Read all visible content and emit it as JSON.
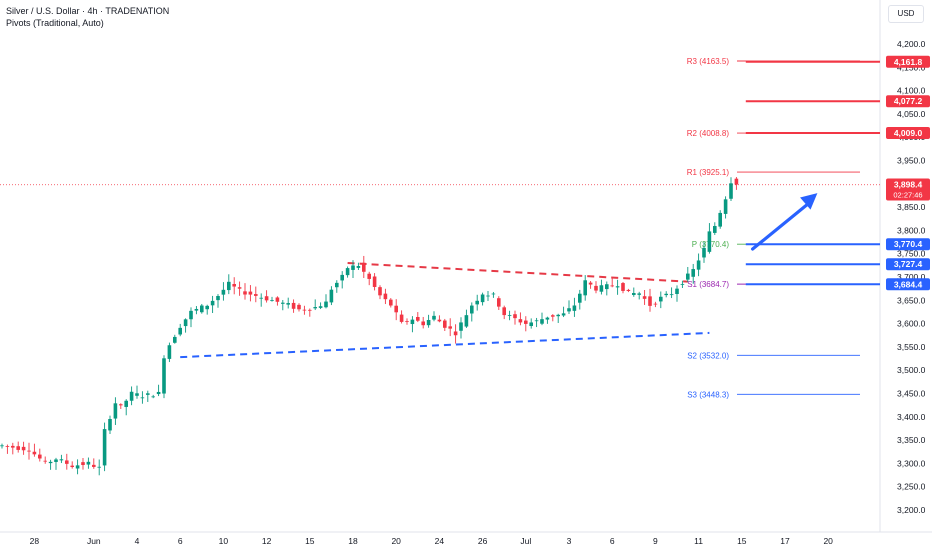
{
  "header": {
    "title": "Silver / U.S. Dollar · 4h · TRADENATION",
    "indicator": "Pivots (Traditional, Auto)"
  },
  "currency_button": "USD",
  "colors": {
    "up": "#089981",
    "down": "#f23645",
    "blue": "#2962ff",
    "red_line": "#e63946",
    "pivot_green": "#4caf50",
    "axis_text": "#131722"
  },
  "icons": {
    "arrow": "arrow-up-right-icon"
  },
  "chart_data": {
    "type": "candlestick",
    "title": "Silver / U.S. Dollar · 4h · TRADENATION",
    "y_axis": {
      "ticks": [
        "4,200.0",
        "4,150.0",
        "4,100.0",
        "4,050.0",
        "4,000.0",
        "3,950.0",
        "3,900.0",
        "3,850.0",
        "3,800.0",
        "3,750.0",
        "3,700.0",
        "3,650.0",
        "3,600.0",
        "3,550.0",
        "3,500.0",
        "3,450.0",
        "3,400.0",
        "3,350.0",
        "3,300.0",
        "3,250.0",
        "3,200.0"
      ],
      "tick_values": [
        4200,
        4150,
        4100,
        4050,
        4000,
        3950,
        3900,
        3850,
        3800,
        3750,
        3700,
        3650,
        3600,
        3550,
        3500,
        3450,
        3400,
        3350,
        3300,
        3250,
        3200
      ],
      "ylim": [
        3180,
        4240
      ]
    },
    "x_axis": {
      "labels": [
        "28",
        "Jun",
        "4",
        "6",
        "10",
        "12",
        "15",
        "18",
        "20",
        "24",
        "26",
        "Jul",
        "3",
        "6",
        "9",
        "11",
        "15",
        "17",
        "20"
      ],
      "label_bars": [
        6,
        17,
        25,
        33,
        41,
        49,
        57,
        65,
        73,
        81,
        89,
        97,
        105,
        113,
        121,
        129,
        137,
        145,
        153
      ]
    },
    "bar_count": 160,
    "last_price_bar": 136,
    "price_path": [
      [
        0,
        3338
      ],
      [
        5,
        3330
      ],
      [
        8,
        3300
      ],
      [
        10,
        3310
      ],
      [
        13,
        3295
      ],
      [
        16,
        3300
      ],
      [
        18,
        3290
      ],
      [
        19,
        3370
      ],
      [
        21,
        3430
      ],
      [
        22,
        3420
      ],
      [
        24,
        3450
      ],
      [
        26,
        3445
      ],
      [
        29,
        3450
      ],
      [
        30,
        3530
      ],
      [
        31,
        3555
      ],
      [
        33,
        3595
      ],
      [
        35,
        3625
      ],
      [
        38,
        3640
      ],
      [
        40,
        3660
      ],
      [
        42,
        3685
      ],
      [
        44,
        3670
      ],
      [
        47,
        3660
      ],
      [
        50,
        3650
      ],
      [
        53,
        3640
      ],
      [
        55,
        3630
      ],
      [
        58,
        3635
      ],
      [
        60,
        3645
      ],
      [
        61,
        3675
      ],
      [
        63,
        3700
      ],
      [
        64,
        3720
      ],
      [
        66,
        3725
      ],
      [
        68,
        3695
      ],
      [
        70,
        3660
      ],
      [
        72,
        3640
      ],
      [
        74,
        3600
      ],
      [
        76,
        3610
      ],
      [
        78,
        3600
      ],
      [
        80,
        3615
      ],
      [
        82,
        3595
      ],
      [
        84,
        3580
      ],
      [
        85,
        3600
      ],
      [
        87,
        3640
      ],
      [
        89,
        3665
      ],
      [
        91,
        3660
      ],
      [
        93,
        3620
      ],
      [
        95,
        3610
      ],
      [
        97,
        3600
      ],
      [
        99,
        3605
      ],
      [
        101,
        3615
      ],
      [
        104,
        3620
      ],
      [
        106,
        3640
      ],
      [
        108,
        3690
      ],
      [
        110,
        3675
      ],
      [
        112,
        3680
      ],
      [
        114,
        3685
      ],
      [
        116,
        3665
      ],
      [
        118,
        3665
      ],
      [
        120,
        3640
      ],
      [
        122,
        3655
      ],
      [
        124,
        3665
      ],
      [
        126,
        3690
      ],
      [
        128,
        3715
      ],
      [
        130,
        3760
      ],
      [
        131,
        3795
      ],
      [
        132,
        3810
      ],
      [
        133,
        3840
      ],
      [
        134,
        3870
      ],
      [
        135,
        3905
      ],
      [
        136,
        3898
      ]
    ],
    "last_price": "3,898.4",
    "countdown": "02:27:46",
    "pivots": [
      {
        "name": "R3",
        "value": 4163.5,
        "label": "R3 (4163.5)",
        "color": "#f23645",
        "x_bars": [
          135,
          160
        ]
      },
      {
        "name": "R2",
        "value": 4008.8,
        "label": "R2 (4008.8)",
        "color": "#f23645",
        "x_bars": [
          135,
          160
        ]
      },
      {
        "name": "R1",
        "value": 3925.1,
        "label": "R1 (3925.1)",
        "color": "#f23645",
        "x_bars": [
          135,
          160
        ]
      },
      {
        "name": "P",
        "value": 3770.4,
        "label": "P (3770.4)",
        "color": "#4caf50",
        "x_bars": [
          135,
          160
        ]
      },
      {
        "name": "S1",
        "value": 3684.7,
        "label": "S1 (3684.7)",
        "color": "#9c27b0",
        "x_bars": [
          135,
          160
        ]
      },
      {
        "name": "S2",
        "value": 3532.0,
        "label": "S2 (3532.0)",
        "color": "#2962ff",
        "x_bars": [
          135,
          160
        ]
      },
      {
        "name": "S3",
        "value": 3448.3,
        "label": "S3 (3448.3)",
        "color": "#2962ff",
        "x_bars": [
          135,
          160
        ]
      }
    ],
    "levels": [
      {
        "value": 4161.8,
        "label": "4,161.8",
        "color": "#f23645",
        "x_start_bar": 137
      },
      {
        "value": 4077.2,
        "label": "4,077.2",
        "color": "#f23645",
        "x_start_bar": 137
      },
      {
        "value": 4009.0,
        "label": "4,009.0",
        "color": "#f23645",
        "x_start_bar": 137
      },
      {
        "value": 3770.4,
        "label": "3,770.4",
        "color": "#2962ff",
        "x_start_bar": 137
      },
      {
        "value": 3727.4,
        "label": "3,727.4",
        "color": "#2962ff",
        "x_start_bar": 137
      },
      {
        "value": 3684.4,
        "label": "3,684.4",
        "color": "#2962ff",
        "x_start_bar": 137
      }
    ],
    "trendlines": [
      {
        "name": "resistance",
        "color": "#e63946",
        "from": [
          64,
          3730
        ],
        "to": [
          127,
          3690
        ]
      },
      {
        "name": "support",
        "color": "#2962ff",
        "from": [
          33,
          3528
        ],
        "to": [
          131,
          3580
        ]
      }
    ],
    "arrow": {
      "from": [
        139,
        3760
      ],
      "to": [
        151,
        3880
      ]
    },
    "legend": "none",
    "grid": false
  }
}
